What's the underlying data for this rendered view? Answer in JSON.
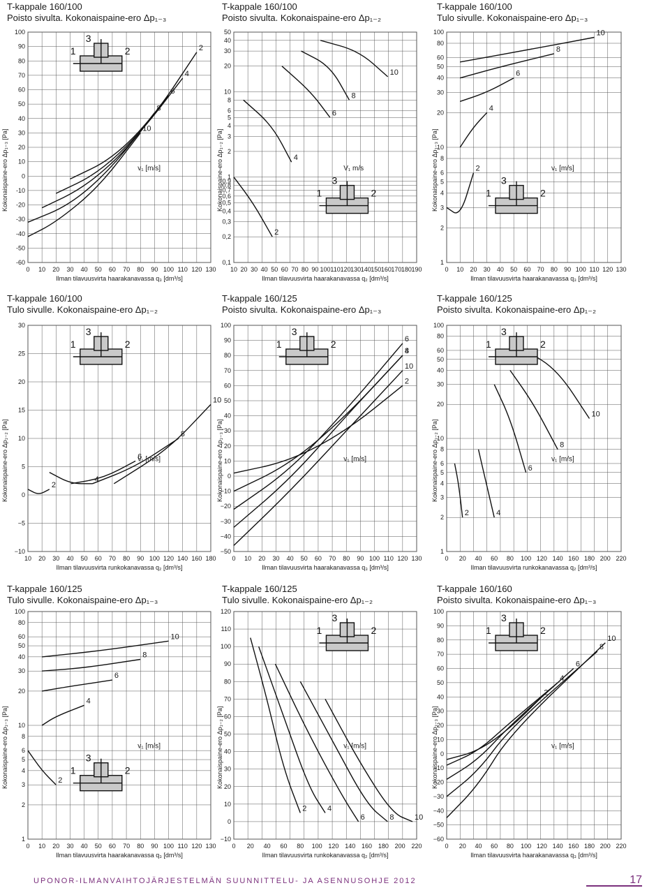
{
  "footer": {
    "text": "UPONOR-ILMANVAIHTOJÄRJESTELMÄN SUUNNITTELU- JA ASENNUSOHJE 2012",
    "page": "17",
    "color": "#7a2f7c"
  },
  "colors": {
    "line": "#111111",
    "grid": "#555555",
    "tee": "#c9c9c9"
  },
  "chart_data": [
    {
      "type": "line",
      "title": "T-kappale 160/100",
      "subtitle": "Poisto sivulta. Kokonaispaine-ero Δp₁₋₃",
      "xlabel": "Ilman tilavuusvirta haarakanavassa q₃ [dm³/s]",
      "ylabel": "Kokonaispaine-ero Δp₁₋₃ [Pa]",
      "xlim": [
        0,
        130
      ],
      "ylim": [
        -60,
        100
      ],
      "yscale": "linear",
      "xticks": [
        "0",
        "10",
        "20",
        "30",
        "40",
        "50",
        "60",
        "70",
        "80",
        "90",
        "100",
        "110",
        "120",
        "130"
      ],
      "yticks": [
        "100",
        "90",
        "80",
        "70",
        "60",
        "50",
        "40",
        "30",
        "20",
        "10",
        "0",
        "-10",
        "-20",
        "-30",
        "-40",
        "-50",
        "-60"
      ],
      "tee": {
        "mode": "poisto-sivulta",
        "labels": [
          "1",
          "2",
          "3"
        ]
      },
      "v_label": "v₁ [m/s]",
      "series": [
        {
          "name": "2",
          "x": [
            30,
            60,
            90,
            120
          ],
          "y": [
            -2,
            12,
            42,
            86
          ]
        },
        {
          "name": "4",
          "x": [
            20,
            50,
            80,
            110
          ],
          "y": [
            -12,
            2,
            30,
            68
          ]
        },
        {
          "name": "6",
          "x": [
            10,
            40,
            70,
            100
          ],
          "y": [
            -22,
            -8,
            18,
            56
          ]
        },
        {
          "name": "8",
          "x": [
            0,
            30,
            60,
            90
          ],
          "y": [
            -32,
            -20,
            6,
            44
          ]
        },
        {
          "name": "10",
          "x": [
            0,
            20,
            50,
            80
          ],
          "y": [
            -42,
            -32,
            -8,
            30
          ]
        }
      ]
    },
    {
      "type": "line",
      "title": "T-kappale 160/100",
      "subtitle": "Poisto sivulta. Kokonaispaine-ero Δp₁₋₂",
      "xlabel": "Ilman tilavuusvirta haarakanavassa q₂ [dm³/s]",
      "ylabel": "Kokonaispaine-ero Δp₁₋₂ [Pa]",
      "xlim": [
        0,
        190
      ],
      "ylim": [
        0.1,
        50
      ],
      "yscale": "log",
      "xticks": [
        "10",
        "20",
        "30",
        "40",
        "50",
        "60",
        "70",
        "80",
        "90",
        "100",
        "110",
        "120",
        "130",
        "140",
        "150",
        "160",
        "170",
        "180",
        "190"
      ],
      "yticks": [
        "50",
        "40",
        "30",
        "20",
        "10",
        "8",
        "6",
        "5",
        "4",
        "3",
        "2",
        "1",
        "0,9",
        "0,8",
        "0,7",
        "0,6",
        "0,5",
        "0,4",
        "0,3",
        "0,2",
        "0,1"
      ],
      "tee": {
        "mode": "poisto-sivulta",
        "labels": [
          "1",
          "2",
          "3"
        ]
      },
      "v_label": "V₁ m/s",
      "series": [
        {
          "name": "2",
          "x": [
            0,
            20,
            40
          ],
          "y": [
            1.0,
            0.5,
            0.2
          ]
        },
        {
          "name": "4",
          "x": [
            10,
            40,
            60
          ],
          "y": [
            8,
            4,
            1.5
          ]
        },
        {
          "name": "6",
          "x": [
            50,
            80,
            100
          ],
          "y": [
            20,
            10,
            5
          ]
        },
        {
          "name": "8",
          "x": [
            70,
            100,
            120
          ],
          "y": [
            30,
            20,
            8
          ]
        },
        {
          "name": "10",
          "x": [
            90,
            130,
            160
          ],
          "y": [
            40,
            30,
            15
          ]
        }
      ]
    },
    {
      "type": "line",
      "title": "T-kappale 160/100",
      "subtitle": "Tulo sivulle. Kokonaispaine-ero Δp₁₋₃",
      "xlabel": "Ilman tilavuusvirta haarakanavassa q₃ [dm³/s]",
      "ylabel": "Kokonaispaine-ero Δp₁₋₃ [Pa]",
      "xlim": [
        0,
        130
      ],
      "ylim": [
        1,
        100
      ],
      "yscale": "log",
      "xticks": [
        "0",
        "10",
        "20",
        "30",
        "40",
        "50",
        "60",
        "70",
        "80",
        "90",
        "100",
        "110",
        "120",
        "130"
      ],
      "yticks": [
        "100",
        "80",
        "60",
        "50",
        "40",
        "30",
        "20",
        "10",
        "8",
        "6",
        "5",
        "4",
        "3",
        "2",
        "1"
      ],
      "tee": {
        "mode": "tulo-sivulle",
        "labels": [
          "1",
          "2",
          "3"
        ]
      },
      "v_label": "v₁ [m/s]",
      "series": [
        {
          "name": "2",
          "x": [
            0,
            10,
            20
          ],
          "y": [
            3,
            2.5,
            6
          ]
        },
        {
          "name": "4",
          "x": [
            10,
            20,
            30
          ],
          "y": [
            10,
            15,
            20
          ]
        },
        {
          "name": "6",
          "x": [
            10,
            30,
            50
          ],
          "y": [
            25,
            30,
            40
          ]
        },
        {
          "name": "8",
          "x": [
            10,
            40,
            80
          ],
          "y": [
            40,
            50,
            65
          ]
        },
        {
          "name": "10",
          "x": [
            10,
            60,
            110
          ],
          "y": [
            55,
            70,
            90
          ]
        }
      ]
    },
    {
      "type": "line",
      "title": "T-kappale 160/100",
      "subtitle": "Tulo sivulle. Kokonaispaine-ero Δp₁₋₂",
      "xlabel": "Ilman tilavuusvirta runkokanavassa q₂ [dm³/s]",
      "ylabel": "Kokonaispaine-ero Δp₁₋₂ [Pa]",
      "xlim": [
        10,
        180
      ],
      "ylim": [
        -10,
        30
      ],
      "yscale": "linear",
      "xticks": [
        "10",
        "20",
        "30",
        "40",
        "50",
        "60",
        "70",
        "80",
        "90",
        "100",
        "120",
        "140",
        "160",
        "180"
      ],
      "yticks": [
        "30",
        "25",
        "20",
        "15",
        "10",
        "5",
        "0",
        "−5",
        "−10"
      ],
      "tee": {
        "mode": "tulo-sivulle",
        "labels": [
          "1",
          "2",
          "3"
        ]
      },
      "v_label": "v₁ [m/s]",
      "series": [
        {
          "name": "2",
          "x": [
            10,
            20,
            30
          ],
          "y": [
            1,
            0,
            1
          ]
        },
        {
          "name": "4",
          "x": [
            30,
            50,
            70
          ],
          "y": [
            4,
            2,
            2
          ]
        },
        {
          "name": "6",
          "x": [
            50,
            80,
            110
          ],
          "y": [
            2,
            3,
            6
          ]
        },
        {
          "name": "8",
          "x": [
            70,
            110,
            150
          ],
          "y": [
            2,
            5,
            10
          ]
        },
        {
          "name": "10",
          "x": [
            90,
            140,
            180
          ],
          "y": [
            2,
            8,
            16
          ]
        }
      ]
    },
    {
      "type": "line",
      "title": "T-kappale 160/125",
      "subtitle": "Poisto sivulta. Kokonaispaine-ero Δp₁₋₃",
      "xlabel": "Ilman tilavuusvirta haarakanavassa q₃ [dm³/s]",
      "ylabel": "Kokonaispaine-ero Δp₁₋₃ [Pa]",
      "xlim": [
        0,
        130
      ],
      "ylim": [
        -50,
        100
      ],
      "yscale": "linear",
      "xticks": [
        "0",
        "10",
        "20",
        "30",
        "40",
        "50",
        "60",
        "70",
        "80",
        "90",
        "100",
        "110",
        "120",
        "130"
      ],
      "yticks": [
        "100",
        "90",
        "80",
        "70",
        "60",
        "50",
        "40",
        "30",
        "20",
        "10",
        "0",
        "−10",
        "−20",
        "−30",
        "−40",
        "−50"
      ],
      "tee": {
        "mode": "poisto-sivulta",
        "labels": [
          "1",
          "2",
          "3"
        ]
      },
      "v_label": "v₁ [m/s]",
      "series": [
        {
          "name": "2",
          "x": [
            0,
            40,
            80,
            120
          ],
          "y": [
            2,
            10,
            30,
            60
          ]
        },
        {
          "name": "4",
          "x": [
            0,
            40,
            80,
            120
          ],
          "y": [
            -10,
            8,
            40,
            80
          ]
        },
        {
          "name": "6",
          "x": [
            0,
            40,
            80,
            120
          ],
          "y": [
            -22,
            4,
            44,
            88
          ]
        },
        {
          "name": "8",
          "x": [
            0,
            40,
            80,
            120
          ],
          "y": [
            -34,
            -2,
            40,
            80
          ]
        },
        {
          "name": "10",
          "x": [
            0,
            40,
            80,
            120
          ],
          "y": [
            -46,
            -10,
            30,
            70
          ]
        }
      ]
    },
    {
      "type": "line",
      "title": "T-kappale 160/125",
      "subtitle": "Poisto sivulta. Kokonaispaine-ero Δp₁₋₂",
      "xlabel": "Ilman tilavuusvirta runkokanavassa q₂ [dm³/s]",
      "ylabel": "Kokonaispaine-ero Δp₁₋₂ [Pa]",
      "xlim": [
        0,
        220
      ],
      "ylim": [
        1,
        100
      ],
      "yscale": "log",
      "xticks": [
        "0",
        "20",
        "40",
        "60",
        "80",
        "100",
        "120",
        "140",
        "160",
        "180",
        "200",
        "220"
      ],
      "yticks": [
        "100",
        "80",
        "60",
        "50",
        "40",
        "30",
        "20",
        "10",
        "8",
        "6",
        "5",
        "4",
        "3",
        "2",
        "1"
      ],
      "tee": {
        "mode": "poisto-sivulta",
        "labels": [
          "1",
          "2",
          "3"
        ]
      },
      "v_label": "v₁ [m/s]",
      "series": [
        {
          "name": "2",
          "x": [
            10,
            15,
            20
          ],
          "y": [
            6,
            4,
            2
          ]
        },
        {
          "name": "4",
          "x": [
            40,
            50,
            60
          ],
          "y": [
            8,
            4,
            2
          ]
        },
        {
          "name": "6",
          "x": [
            60,
            80,
            100
          ],
          "y": [
            30,
            15,
            5
          ]
        },
        {
          "name": "8",
          "x": [
            80,
            110,
            140
          ],
          "y": [
            40,
            20,
            8
          ]
        },
        {
          "name": "10",
          "x": [
            100,
            140,
            180
          ],
          "y": [
            60,
            40,
            15
          ]
        }
      ]
    },
    {
      "type": "line",
      "title": "T-kappale 160/125",
      "subtitle": "Tulo sivulle. Kokonaispaine-ero Δp₁₋₃",
      "xlabel": "Ilman tilavuusvirta haarakanavassa q₃ [dm³/s]",
      "ylabel": "Kokonaispaine-ero Δp₁₋₃ [Pa]",
      "xlim": [
        0,
        130
      ],
      "ylim": [
        1,
        100
      ],
      "yscale": "log",
      "xticks": [
        "0",
        "10",
        "20",
        "30",
        "40",
        "50",
        "60",
        "70",
        "80",
        "90",
        "100",
        "110",
        "120",
        "130"
      ],
      "yticks": [
        "100",
        "80",
        "60",
        "50",
        "40",
        "30",
        "20",
        "10",
        "8",
        "6",
        "5",
        "4",
        "3",
        "2",
        "1"
      ],
      "tee": {
        "mode": "tulo-sivulle",
        "labels": [
          "1",
          "2",
          "3"
        ]
      },
      "v_label": "v₁ [m/s]",
      "series": [
        {
          "name": "2",
          "x": [
            0,
            10,
            20
          ],
          "y": [
            6,
            4,
            3
          ]
        },
        {
          "name": "4",
          "x": [
            10,
            20,
            40
          ],
          "y": [
            10,
            12,
            15
          ]
        },
        {
          "name": "6",
          "x": [
            10,
            30,
            60
          ],
          "y": [
            20,
            22,
            25
          ]
        },
        {
          "name": "8",
          "x": [
            10,
            40,
            80
          ],
          "y": [
            30,
            32,
            38
          ]
        },
        {
          "name": "10",
          "x": [
            10,
            50,
            100
          ],
          "y": [
            40,
            45,
            55
          ]
        }
      ]
    },
    {
      "type": "line",
      "title": "T-kappale 160/125",
      "subtitle": "Tulo sivulle. Kokonaispaine-ero Δp₁₋₂",
      "xlabel": "Ilman tilavuusvirta runkokanavassa q₂ [dm³/s]",
      "ylabel": "Kokonaispaine-ero Δp₁₋₂ [Pa]",
      "xlim": [
        0,
        220
      ],
      "ylim": [
        -10,
        120
      ],
      "yscale": "linear",
      "xticks": [
        "0",
        "20",
        "40",
        "60",
        "80",
        "100",
        "120",
        "140",
        "160",
        "180",
        "200",
        "220"
      ],
      "yticks": [
        "120",
        "110",
        "100",
        "90",
        "80",
        "70",
        "60",
        "50",
        "40",
        "30",
        "20",
        "10",
        "0",
        "−10"
      ],
      "tee": {
        "mode": "tulo-sivulle",
        "labels": [
          "1",
          "2",
          "3"
        ]
      },
      "v_label": "v₁ [m/s]",
      "series": [
        {
          "name": "2",
          "x": [
            20,
            40,
            60,
            80
          ],
          "y": [
            105,
            70,
            30,
            5
          ]
        },
        {
          "name": "4",
          "x": [
            30,
            60,
            90,
            110
          ],
          "y": [
            100,
            60,
            20,
            5
          ]
        },
        {
          "name": "6",
          "x": [
            50,
            90,
            130,
            150
          ],
          "y": [
            90,
            50,
            15,
            0
          ]
        },
        {
          "name": "8",
          "x": [
            80,
            120,
            160,
            185
          ],
          "y": [
            80,
            45,
            10,
            0
          ]
        },
        {
          "name": "10",
          "x": [
            110,
            150,
            190,
            215
          ],
          "y": [
            70,
            35,
            5,
            0
          ]
        }
      ]
    },
    {
      "type": "line",
      "title": "T-kappale 160/160",
      "subtitle": "Poisto sivulta. Kokonaispaine-ero Δp₁₋₃",
      "xlabel": "Ilman tilavuusvirta haarakanavassa q₃ [dm³/s]",
      "ylabel": "Kokonaispaine-ero Δp₁₋₃ [Pa]",
      "xlim": [
        0,
        220
      ],
      "ylim": [
        -60,
        100
      ],
      "yscale": "linear",
      "xticks": [
        "0",
        "20",
        "40",
        "60",
        "80",
        "100",
        "120",
        "140",
        "160",
        "180",
        "200",
        "220"
      ],
      "yticks": [
        "100",
        "90",
        "80",
        "70",
        "60",
        "50",
        "40",
        "30",
        "20",
        "10",
        "0",
        "−10",
        "−20",
        "−30",
        "−40",
        "−50",
        "−60"
      ],
      "tee": {
        "mode": "poisto-sivulta",
        "labels": [
          "1",
          "2",
          "3"
        ]
      },
      "v_label": "v₁ [m/s]",
      "series": [
        {
          "name": "2",
          "x": [
            0,
            40,
            80,
            120
          ],
          "y": [
            -4,
            2,
            18,
            40
          ]
        },
        {
          "name": "4",
          "x": [
            0,
            40,
            80,
            140
          ],
          "y": [
            -8,
            2,
            22,
            50
          ]
        },
        {
          "name": "6",
          "x": [
            0,
            40,
            80,
            160
          ],
          "y": [
            -18,
            -4,
            20,
            60
          ]
        },
        {
          "name": "8",
          "x": [
            0,
            40,
            80,
            190
          ],
          "y": [
            -30,
            -12,
            18,
            72
          ]
        },
        {
          "name": "10",
          "x": [
            0,
            40,
            80,
            200
          ],
          "y": [
            -45,
            -22,
            14,
            78
          ]
        }
      ]
    }
  ]
}
